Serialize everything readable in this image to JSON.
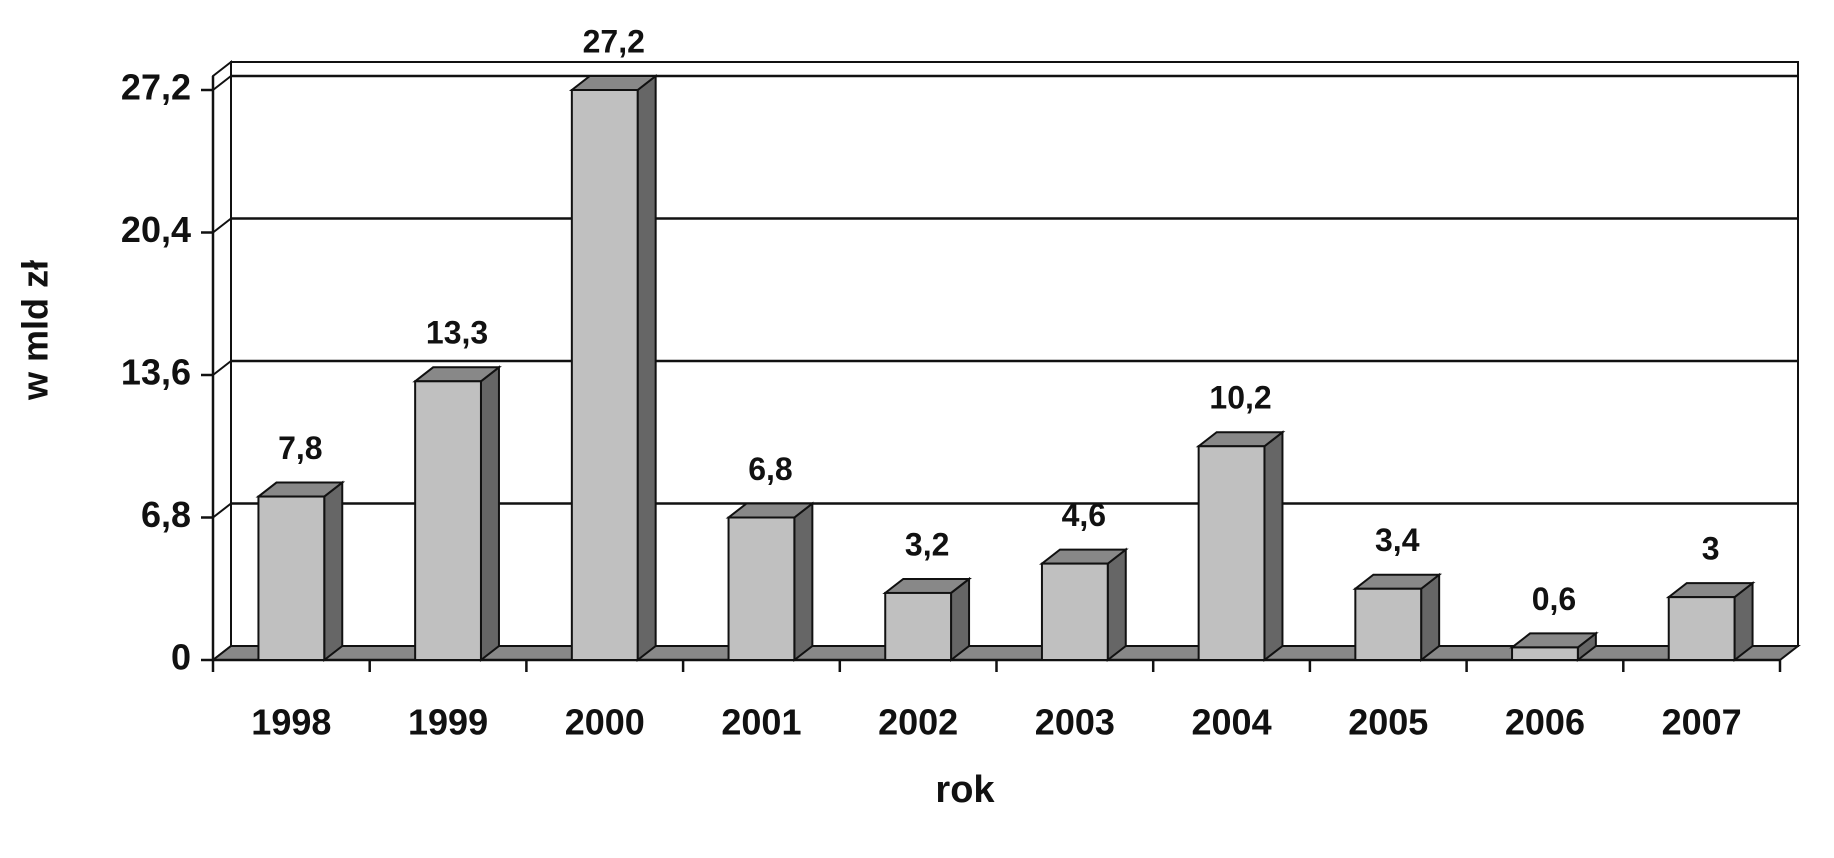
{
  "chart_data": {
    "type": "bar3d",
    "x_label": "rok",
    "y_label": "w mld zł",
    "categories": [
      "1998",
      "1999",
      "2000",
      "2001",
      "2002",
      "2003",
      "2004",
      "2005",
      "2006",
      "2007"
    ],
    "values": [
      7.8,
      13.3,
      27.2,
      6.8,
      3.2,
      4.6,
      10.2,
      3.4,
      0.6,
      3
    ],
    "value_labels": [
      "7,8",
      "13,3",
      "27,2",
      "6,8",
      "3,2",
      "4,6",
      "10,2",
      "3,4",
      "0,6",
      "3"
    ],
    "color": "#c0c0c0",
    "ylim": [
      0,
      27.2
    ],
    "yticks": [
      0,
      {
        "value": 6.8,
        "label": "6,8"
      },
      {
        "value": 13.6,
        "label": "13,6"
      },
      {
        "value": 20.4,
        "label": "20,4"
      },
      {
        "value": 27.2,
        "label": "27,2"
      }
    ],
    "grid": true
  }
}
